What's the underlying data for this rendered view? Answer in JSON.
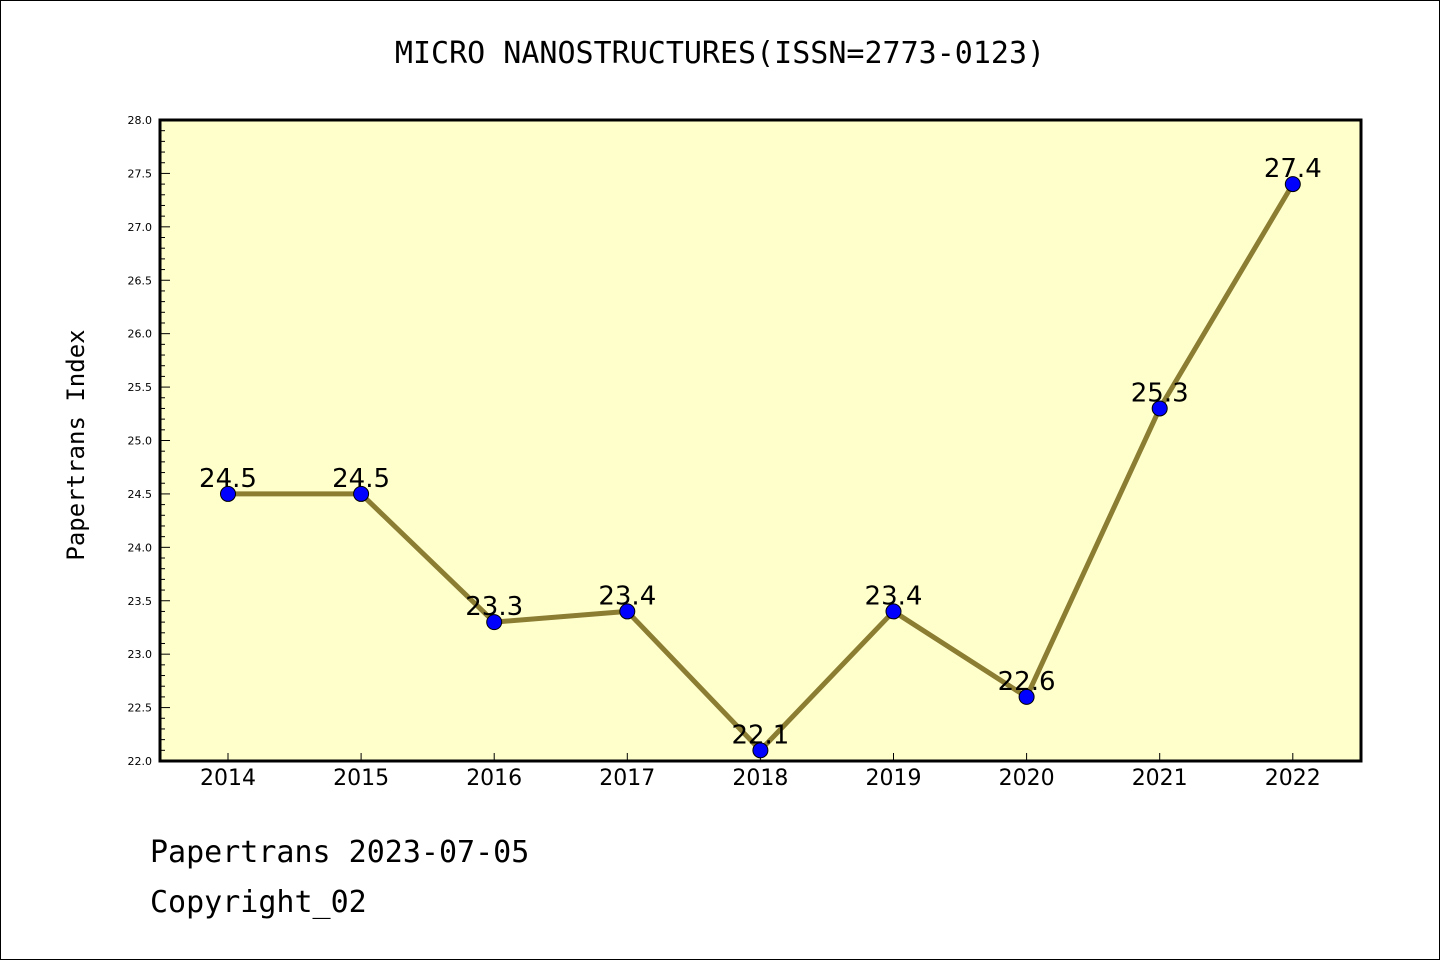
{
  "chart_data": {
    "type": "line",
    "title": "MICRO NANOSTRUCTURES(ISSN=2773-0123)",
    "xlabel": "",
    "ylabel": "Papertrans Index",
    "categories": [
      "2014",
      "2015",
      "2016",
      "2017",
      "2018",
      "2019",
      "2020",
      "2021",
      "2022"
    ],
    "values": [
      24.5,
      24.5,
      23.3,
      23.4,
      22.1,
      23.4,
      22.6,
      25.3,
      27.4
    ],
    "data_labels": [
      "24.5",
      "24.5",
      "23.3",
      "23.4",
      "22.1",
      "23.4",
      "22.6",
      "25.3",
      "27.4"
    ],
    "ylim": [
      22.0,
      28.0
    ],
    "yticks": [
      "22.0",
      "22.5",
      "23.0",
      "23.5",
      "24.0",
      "24.5",
      "25.0",
      "25.5",
      "26.0",
      "26.5",
      "27.0",
      "27.5",
      "28.0"
    ],
    "grid": false,
    "colors": {
      "plot_background": "#ffffcc",
      "line": "#8b7d32",
      "marker": "#0000ff"
    }
  },
  "footer": {
    "line1": "Papertrans 2023-07-05",
    "line2": "Copyright_02"
  }
}
